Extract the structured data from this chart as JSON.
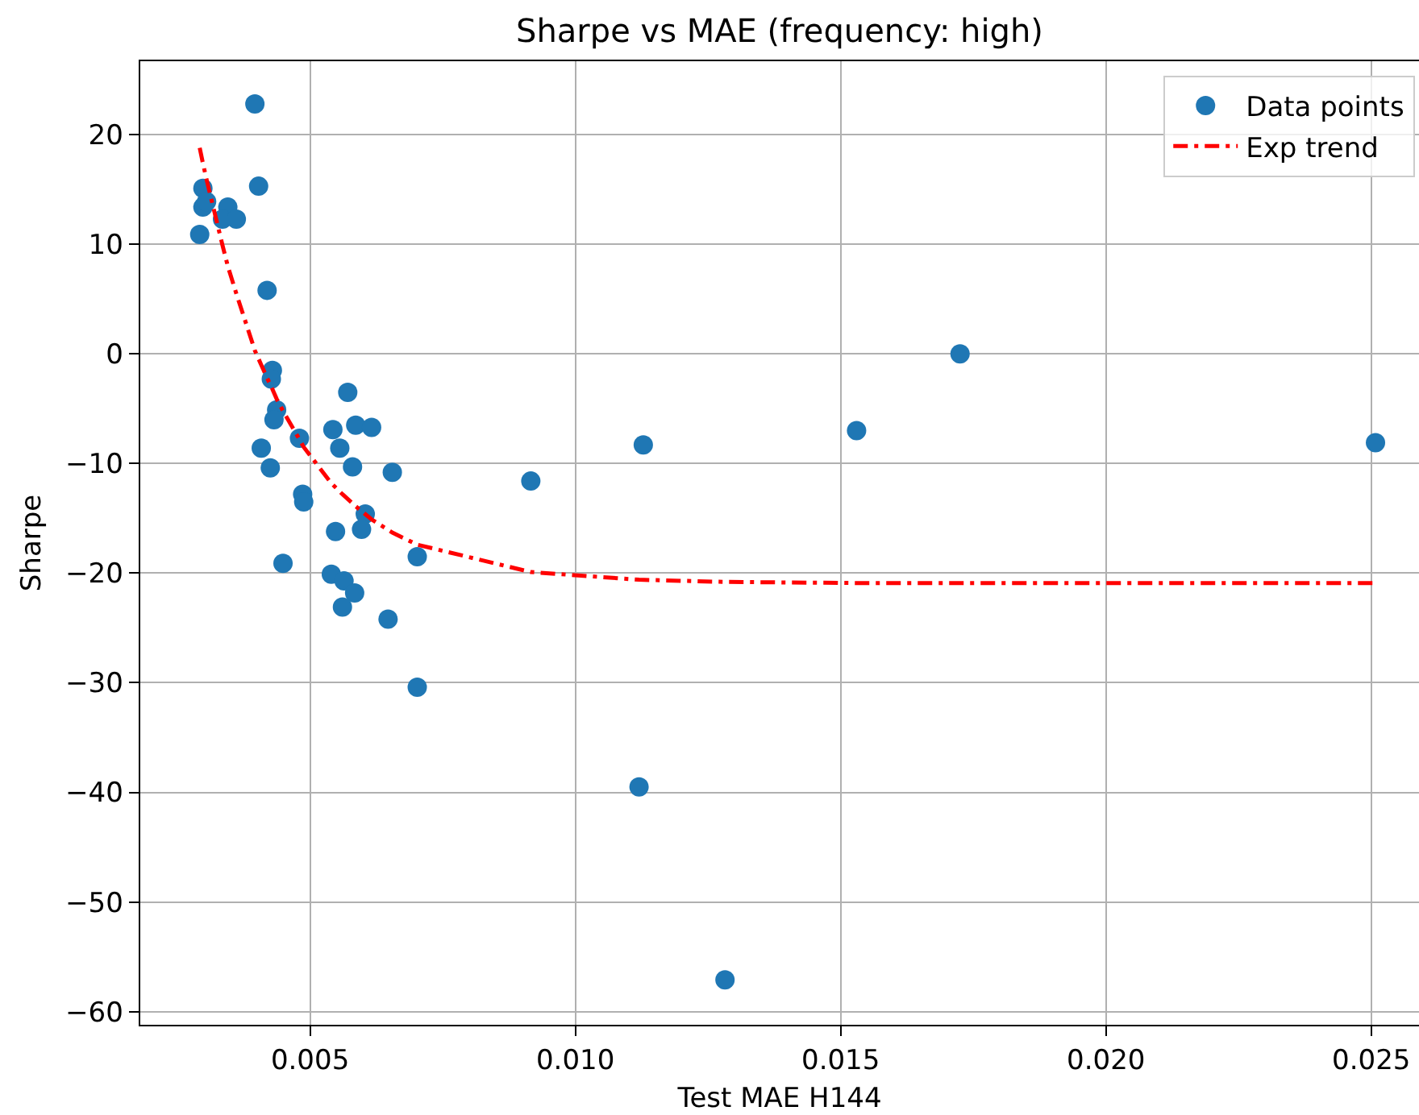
{
  "chart_data": {
    "type": "scatter",
    "title": "Sharpe vs MAE (frequency: high)",
    "xlabel": "Test MAE H144",
    "ylabel": "Sharpe",
    "xlim": [
      0.0018,
      0.0259
    ],
    "ylim": [
      -61.2,
      26.7
    ],
    "xticks": [
      0.005,
      {
        "value": 0.01,
        "label": "0.010"
      },
      0.015,
      {
        "value": 0.02,
        "label": "0.020"
      },
      0.025
    ],
    "yticks": [
      -60,
      -50,
      -40,
      -30,
      -20,
      -10,
      0,
      10,
      20
    ],
    "grid": true,
    "legend": "top right",
    "series": [
      {
        "name": "Data points",
        "type": "scatter",
        "marker": "circle",
        "color": "#1f77b4",
        "x": [
          0.00396,
          0.00298,
          0.00403,
          0.00298,
          0.00305,
          0.00345,
          0.00335,
          0.00361,
          0.00292,
          0.00419,
          0.00429,
          0.00427,
          0.00437,
          0.00432,
          0.00408,
          0.00425,
          0.0048,
          0.00486,
          0.00488,
          0.00449,
          0.00543,
          0.00571,
          0.00556,
          0.00586,
          0.00616,
          0.0058,
          0.00655,
          0.00604,
          0.00597,
          0.00548,
          0.00702,
          0.0054,
          0.00564,
          0.00584,
          0.00561,
          0.00647,
          0.00702,
          0.00916,
          0.01128,
          0.0153,
          0.01725,
          0.02508,
          0.0112,
          0.01282
        ],
        "values": [
          22.8,
          15.1,
          15.3,
          13.4,
          13.9,
          13.4,
          12.3,
          12.3,
          10.9,
          5.8,
          -1.5,
          -2.3,
          -5.1,
          -6.0,
          -8.6,
          -10.4,
          -7.7,
          -12.8,
          -13.5,
          -19.1,
          -6.9,
          -3.5,
          -8.6,
          -6.5,
          -6.7,
          -10.3,
          -10.8,
          -14.6,
          -16.0,
          -16.2,
          -18.5,
          -20.1,
          -20.7,
          -21.8,
          -23.1,
          -24.2,
          -30.4,
          -11.6,
          -8.3,
          -7.0,
          0.0,
          -8.1,
          -39.5,
          -57.1
        ]
      },
      {
        "name": "Exp trend",
        "type": "line",
        "line_style": "dashdot",
        "color": "#ff0000",
        "x": [
          0.00292,
          0.00298,
          0.00305,
          0.00335,
          0.00345,
          0.00361,
          0.00396,
          0.00408,
          0.00419,
          0.00427,
          0.00437,
          0.00449,
          0.0048,
          0.00488,
          0.0054,
          0.00561,
          0.00586,
          0.00616,
          0.00655,
          0.00702,
          0.00916,
          0.0112,
          0.01282,
          0.0153,
          0.01725,
          0.02508
        ],
        "values": [
          18.8,
          17.4,
          15.9,
          9.9,
          8.0,
          5.5,
          0.3,
          -1.0,
          -2.2,
          -3.0,
          -4.1,
          -5.2,
          -7.8,
          -8.5,
          -11.8,
          -12.8,
          -13.9,
          -15.1,
          -16.3,
          -17.4,
          -19.9,
          -20.6,
          -20.8,
          -20.9,
          -20.9,
          -20.9
        ]
      }
    ]
  }
}
